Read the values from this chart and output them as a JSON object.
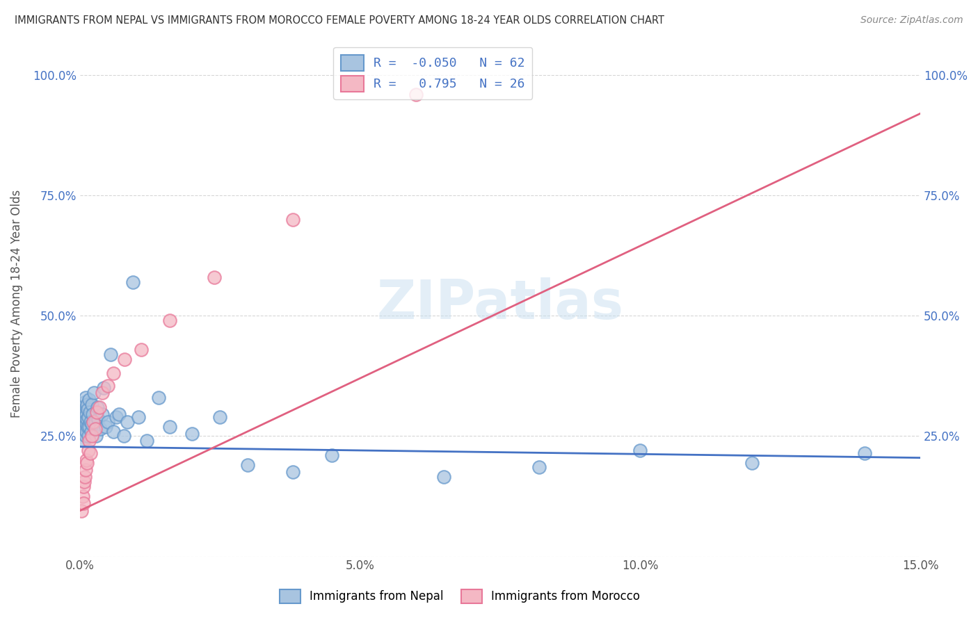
{
  "title": "IMMIGRANTS FROM NEPAL VS IMMIGRANTS FROM MOROCCO FEMALE POVERTY AMONG 18-24 YEAR OLDS CORRELATION CHART",
  "source": "Source: ZipAtlas.com",
  "ylabel": "Female Poverty Among 18-24 Year Olds",
  "xlim": [
    0.0,
    0.15
  ],
  "ylim": [
    0.0,
    1.05
  ],
  "xticks": [
    0.0,
    0.05,
    0.1,
    0.15
  ],
  "xticklabels": [
    "0.0%",
    "5.0%",
    "10.0%",
    "15.0%"
  ],
  "yticks": [
    0.0,
    0.25,
    0.5,
    0.75,
    1.0
  ],
  "yticklabels_left": [
    "",
    "25.0%",
    "50.0%",
    "75.0%",
    "100.0%"
  ],
  "yticklabels_right": [
    "",
    "25.0%",
    "50.0%",
    "75.0%",
    "100.0%"
  ],
  "nepal_color": "#a8c4e0",
  "nepal_edge_color": "#6699cc",
  "morocco_color": "#f4b8c4",
  "morocco_edge_color": "#e87899",
  "nepal_line_color": "#4472c4",
  "morocco_line_color": "#e06080",
  "nepal_R": -0.05,
  "nepal_N": 62,
  "morocco_R": 0.795,
  "morocco_N": 26,
  "legend_label_nepal": "Immigrants from Nepal",
  "legend_label_morocco": "Immigrants from Morocco",
  "watermark": "ZIPatlas",
  "background_color": "#ffffff",
  "nepal_x": [
    0.0003,
    0.0004,
    0.0005,
    0.0006,
    0.0006,
    0.0007,
    0.0007,
    0.0008,
    0.0008,
    0.0009,
    0.0009,
    0.001,
    0.001,
    0.0011,
    0.0011,
    0.0012,
    0.0012,
    0.0013,
    0.0013,
    0.0014,
    0.0014,
    0.0015,
    0.0015,
    0.0016,
    0.0017,
    0.0018,
    0.0019,
    0.002,
    0.0021,
    0.0022,
    0.0023,
    0.0025,
    0.0027,
    0.0029,
    0.0031,
    0.0033,
    0.0036,
    0.004,
    0.0043,
    0.0046,
    0.005,
    0.0055,
    0.006,
    0.0065,
    0.007,
    0.0078,
    0.0085,
    0.0095,
    0.0105,
    0.012,
    0.014,
    0.016,
    0.02,
    0.025,
    0.03,
    0.038,
    0.045,
    0.065,
    0.082,
    0.1,
    0.12,
    0.14
  ],
  "nepal_y": [
    0.285,
    0.31,
    0.27,
    0.255,
    0.3,
    0.295,
    0.24,
    0.28,
    0.32,
    0.265,
    0.29,
    0.33,
    0.25,
    0.275,
    0.31,
    0.295,
    0.26,
    0.285,
    0.315,
    0.27,
    0.305,
    0.25,
    0.29,
    0.325,
    0.27,
    0.3,
    0.28,
    0.26,
    0.315,
    0.275,
    0.295,
    0.34,
    0.28,
    0.25,
    0.31,
    0.285,
    0.265,
    0.295,
    0.35,
    0.27,
    0.28,
    0.42,
    0.26,
    0.29,
    0.295,
    0.25,
    0.28,
    0.57,
    0.29,
    0.24,
    0.33,
    0.27,
    0.255,
    0.29,
    0.19,
    0.175,
    0.21,
    0.165,
    0.185,
    0.22,
    0.195,
    0.215
  ],
  "morocco_x": [
    0.0003,
    0.0005,
    0.0006,
    0.0007,
    0.0008,
    0.0009,
    0.001,
    0.0011,
    0.0013,
    0.0015,
    0.0017,
    0.0019,
    0.0021,
    0.0024,
    0.0027,
    0.003,
    0.0035,
    0.004,
    0.005,
    0.006,
    0.008,
    0.011,
    0.016,
    0.024,
    0.038,
    0.06
  ],
  "morocco_y": [
    0.095,
    0.125,
    0.145,
    0.11,
    0.155,
    0.165,
    0.18,
    0.2,
    0.195,
    0.22,
    0.24,
    0.215,
    0.25,
    0.28,
    0.265,
    0.3,
    0.31,
    0.34,
    0.355,
    0.38,
    0.41,
    0.43,
    0.49,
    0.58,
    0.7,
    0.96
  ],
  "nepal_trend": [
    0.0,
    0.15
  ],
  "nepal_trend_y": [
    0.228,
    0.205
  ],
  "morocco_trend": [
    0.0,
    0.15
  ],
  "morocco_trend_y": [
    0.095,
    0.92
  ]
}
